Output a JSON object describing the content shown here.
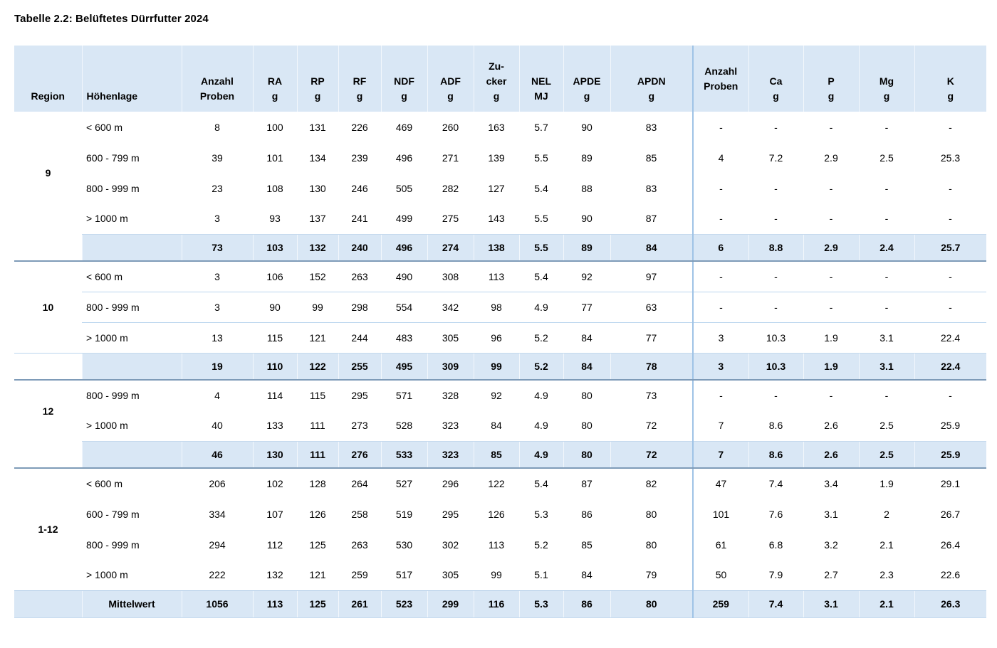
{
  "title": "Tabelle 2.2: Belüftetes Dürrfutter 2024",
  "colors": {
    "header_bg": "#d9e7f5",
    "summary_bg": "#d9e7f5",
    "section_separator_line": "#7e9bb8",
    "group_divider_line": "#9fc3e6",
    "inner_row_line": "#bad6ee",
    "text": "#000000"
  },
  "table": {
    "columns": [
      {
        "id": "region",
        "lines": [
          "Region"
        ]
      },
      {
        "id": "hoehenlage",
        "lines": [
          "Höhenlage"
        ]
      },
      {
        "id": "anzahl-proben",
        "lines": [
          "Anzahl",
          "Proben"
        ]
      },
      {
        "id": "ra",
        "lines": [
          "RA",
          "g"
        ]
      },
      {
        "id": "rp",
        "lines": [
          "RP",
          "g"
        ]
      },
      {
        "id": "rf",
        "lines": [
          "RF",
          "g"
        ]
      },
      {
        "id": "ndf",
        "lines": [
          "NDF",
          "g"
        ]
      },
      {
        "id": "adf",
        "lines": [
          "ADF",
          "g"
        ]
      },
      {
        "id": "zucker",
        "lines": [
          "Zu-",
          "cker",
          "g"
        ]
      },
      {
        "id": "nel",
        "lines": [
          "NEL",
          "MJ"
        ]
      },
      {
        "id": "apde",
        "lines": [
          "APDE",
          "g"
        ]
      },
      {
        "id": "apdn",
        "lines": [
          "APDN",
          "g"
        ]
      },
      {
        "id": "anzahl-proben-2",
        "lines": [
          "Anzahl",
          "Proben"
        ],
        "valign": "middle"
      },
      {
        "id": "ca",
        "lines": [
          "Ca",
          "g"
        ]
      },
      {
        "id": "p",
        "lines": [
          "P",
          "g"
        ]
      },
      {
        "id": "mg",
        "lines": [
          "Mg",
          "g"
        ]
      },
      {
        "id": "k",
        "lines": [
          "K",
          "g"
        ]
      }
    ],
    "sections": [
      {
        "region": "9",
        "row_dividers": false,
        "rows": [
          {
            "hoehenlage": "< 600 m",
            "values": [
              "8",
              "100",
              "131",
              "226",
              "469",
              "260",
              "163",
              "5.7",
              "90",
              "83",
              "-",
              "-",
              "-",
              "-",
              "-"
            ]
          },
          {
            "hoehenlage": "600 - 799 m",
            "values": [
              "39",
              "101",
              "134",
              "239",
              "496",
              "271",
              "139",
              "5.5",
              "89",
              "85",
              "4",
              "7.2",
              "2.9",
              "2.5",
              "25.3"
            ]
          },
          {
            "hoehenlage": "800 - 999 m",
            "values": [
              "23",
              "108",
              "130",
              "246",
              "505",
              "282",
              "127",
              "5.4",
              "88",
              "83",
              "-",
              "-",
              "-",
              "-",
              "-"
            ]
          },
          {
            "hoehenlage": "> 1000 m",
            "values": [
              "3",
              "93",
              "137",
              "241",
              "499",
              "275",
              "143",
              "5.5",
              "90",
              "87",
              "-",
              "-",
              "-",
              "-",
              "-"
            ]
          }
        ],
        "summary": {
          "label": "",
          "values": [
            "73",
            "103",
            "132",
            "240",
            "496",
            "274",
            "138",
            "5.5",
            "89",
            "84",
            "6",
            "8.8",
            "2.9",
            "2.4",
            "25.7"
          ]
        }
      },
      {
        "region": "10",
        "row_dividers": true,
        "rows": [
          {
            "hoehenlage": "< 600 m",
            "values": [
              "3",
              "106",
              "152",
              "263",
              "490",
              "308",
              "113",
              "5.4",
              "92",
              "97",
              "-",
              "-",
              "-",
              "-",
              "-"
            ]
          },
          {
            "hoehenlage": "800 - 999 m",
            "values": [
              "3",
              "90",
              "99",
              "298",
              "554",
              "342",
              "98",
              "4.9",
              "77",
              "63",
              "-",
              "-",
              "-",
              "-",
              "-"
            ]
          },
          {
            "hoehenlage": "> 1000 m",
            "values": [
              "13",
              "115",
              "121",
              "244",
              "483",
              "305",
              "96",
              "5.2",
              "84",
              "77",
              "3",
              "10.3",
              "1.9",
              "3.1",
              "22.4"
            ]
          }
        ],
        "summary": {
          "label": "",
          "values": [
            "19",
            "110",
            "122",
            "255",
            "495",
            "309",
            "99",
            "5.2",
            "84",
            "78",
            "3",
            "10.3",
            "1.9",
            "3.1",
            "22.4"
          ]
        }
      },
      {
        "region": "12",
        "row_dividers": false,
        "rows": [
          {
            "hoehenlage": "800 - 999 m",
            "values": [
              "4",
              "114",
              "115",
              "295",
              "571",
              "328",
              "92",
              "4.9",
              "80",
              "73",
              "-",
              "-",
              "-",
              "-",
              "-"
            ]
          },
          {
            "hoehenlage": "> 1000 m",
            "values": [
              "40",
              "133",
              "111",
              "273",
              "528",
              "323",
              "84",
              "4.9",
              "80",
              "72",
              "7",
              "8.6",
              "2.6",
              "2.5",
              "25.9"
            ]
          }
        ],
        "summary": {
          "label": "",
          "values": [
            "46",
            "130",
            "111",
            "276",
            "533",
            "323",
            "85",
            "4.9",
            "80",
            "72",
            "7",
            "8.6",
            "2.6",
            "2.5",
            "25.9"
          ]
        }
      },
      {
        "region": "1-12",
        "row_dividers": false,
        "rows": [
          {
            "hoehenlage": "< 600 m",
            "values": [
              "206",
              "102",
              "128",
              "264",
              "527",
              "296",
              "122",
              "5.4",
              "87",
              "82",
              "47",
              "7.4",
              "3.4",
              "1.9",
              "29.1"
            ]
          },
          {
            "hoehenlage": "600 - 799 m",
            "values": [
              "334",
              "107",
              "126",
              "258",
              "519",
              "295",
              "126",
              "5.3",
              "86",
              "80",
              "101",
              "7.6",
              "3.1",
              "2",
              "26.7"
            ]
          },
          {
            "hoehenlage": "800 - 999 m",
            "values": [
              "294",
              "112",
              "125",
              "263",
              "530",
              "302",
              "113",
              "5.2",
              "85",
              "80",
              "61",
              "6.8",
              "3.2",
              "2.1",
              "26.4"
            ]
          },
          {
            "hoehenlage": "> 1000 m",
            "values": [
              "222",
              "132",
              "121",
              "259",
              "517",
              "305",
              "99",
              "5.1",
              "84",
              "79",
              "50",
              "7.9",
              "2.7",
              "2.3",
              "22.6"
            ]
          }
        ],
        "summary": {
          "label": "Mittelwert",
          "full_width": true,
          "values": [
            "1056",
            "113",
            "125",
            "261",
            "523",
            "299",
            "116",
            "5.3",
            "86",
            "80",
            "259",
            "7.4",
            "3.1",
            "2.1",
            "26.3"
          ]
        }
      }
    ]
  }
}
